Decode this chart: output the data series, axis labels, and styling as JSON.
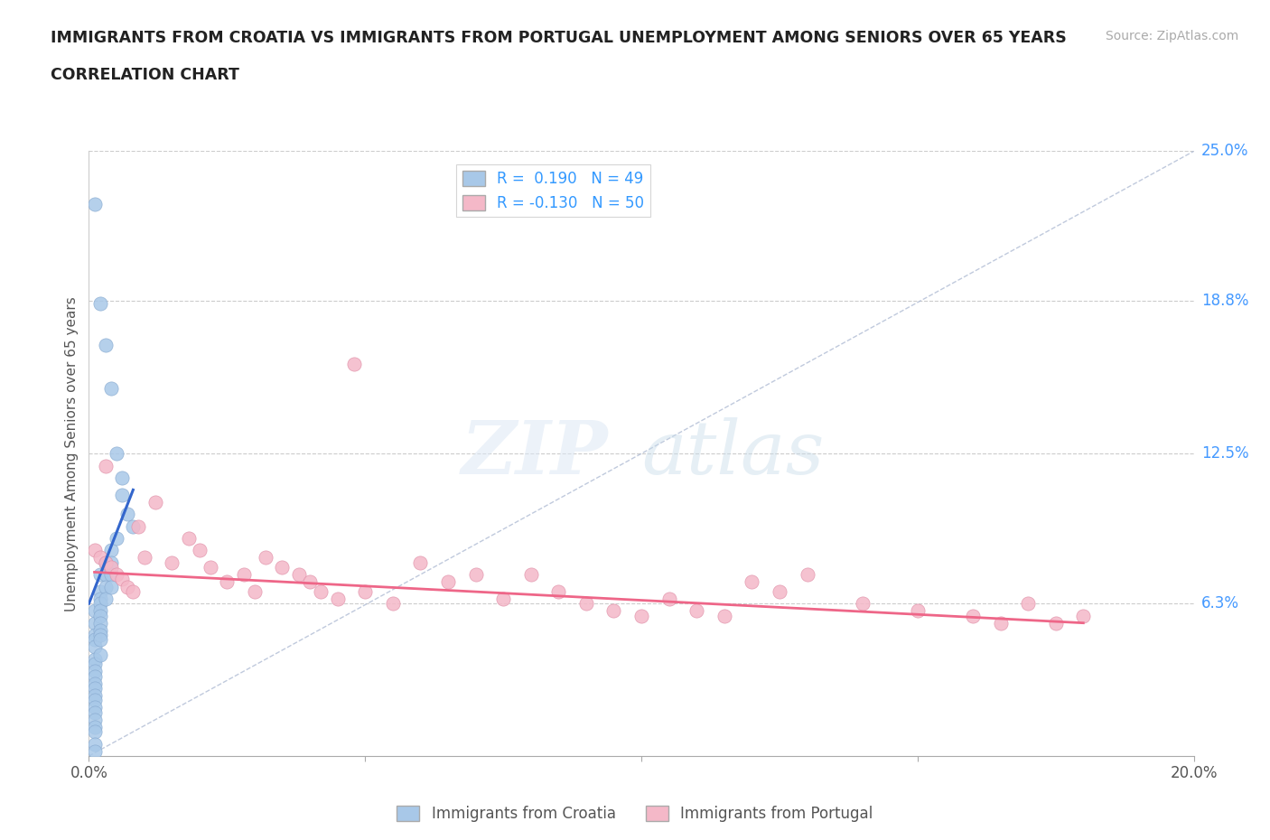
{
  "title_line1": "IMMIGRANTS FROM CROATIA VS IMMIGRANTS FROM PORTUGAL UNEMPLOYMENT AMONG SENIORS OVER 65 YEARS",
  "title_line2": "CORRELATION CHART",
  "source": "Source: ZipAtlas.com",
  "ylabel": "Unemployment Among Seniors over 65 years",
  "xlim": [
    0.0,
    0.2
  ],
  "ylim": [
    0.0,
    0.25
  ],
  "ytick_right_labels": [
    "6.3%",
    "12.5%",
    "18.8%",
    "25.0%"
  ],
  "ytick_right_values": [
    0.063,
    0.125,
    0.188,
    0.25
  ],
  "croatia_R": 0.19,
  "croatia_N": 49,
  "portugal_R": -0.13,
  "portugal_N": 50,
  "croatia_color": "#a8c8e8",
  "portugal_color": "#f4b8c8",
  "croatia_line_color": "#3366cc",
  "portugal_line_color": "#ee6688",
  "diagonal_color": "#b0bcd4",
  "watermark_zip": "ZIP",
  "watermark_atlas": "atlas",
  "croatia_x": [
    0.001,
    0.001,
    0.001,
    0.001,
    0.001,
    0.001,
    0.001,
    0.001,
    0.001,
    0.001,
    0.001,
    0.001,
    0.001,
    0.001,
    0.001,
    0.001,
    0.001,
    0.001,
    0.001,
    0.001,
    0.002,
    0.002,
    0.002,
    0.002,
    0.002,
    0.002,
    0.002,
    0.002,
    0.002,
    0.002,
    0.002,
    0.002,
    0.003,
    0.003,
    0.003,
    0.003,
    0.003,
    0.004,
    0.004,
    0.004,
    0.004,
    0.004,
    0.005,
    0.005,
    0.006,
    0.006,
    0.007,
    0.008,
    0.001
  ],
  "croatia_y": [
    0.228,
    0.06,
    0.055,
    0.05,
    0.048,
    0.045,
    0.04,
    0.038,
    0.035,
    0.033,
    0.03,
    0.028,
    0.025,
    0.023,
    0.02,
    0.018,
    0.015,
    0.012,
    0.01,
    0.005,
    0.187,
    0.075,
    0.068,
    0.065,
    0.063,
    0.06,
    0.058,
    0.055,
    0.052,
    0.05,
    0.048,
    0.042,
    0.17,
    0.08,
    0.075,
    0.07,
    0.065,
    0.152,
    0.085,
    0.08,
    0.075,
    0.07,
    0.125,
    0.09,
    0.115,
    0.108,
    0.1,
    0.095,
    0.002
  ],
  "portugal_x": [
    0.001,
    0.002,
    0.003,
    0.004,
    0.005,
    0.006,
    0.007,
    0.008,
    0.009,
    0.01,
    0.012,
    0.015,
    0.018,
    0.02,
    0.022,
    0.025,
    0.028,
    0.03,
    0.032,
    0.035,
    0.038,
    0.04,
    0.042,
    0.045,
    0.048,
    0.05,
    0.055,
    0.06,
    0.065,
    0.07,
    0.075,
    0.08,
    0.085,
    0.09,
    0.095,
    0.1,
    0.105,
    0.11,
    0.115,
    0.12,
    0.125,
    0.13,
    0.14,
    0.15,
    0.16,
    0.165,
    0.17,
    0.175,
    0.18,
    0.003
  ],
  "portugal_y": [
    0.085,
    0.082,
    0.08,
    0.078,
    0.075,
    0.073,
    0.07,
    0.068,
    0.095,
    0.082,
    0.105,
    0.08,
    0.09,
    0.085,
    0.078,
    0.072,
    0.075,
    0.068,
    0.082,
    0.078,
    0.075,
    0.072,
    0.068,
    0.065,
    0.162,
    0.068,
    0.063,
    0.08,
    0.072,
    0.075,
    0.065,
    0.075,
    0.068,
    0.063,
    0.06,
    0.058,
    0.065,
    0.06,
    0.058,
    0.072,
    0.068,
    0.075,
    0.063,
    0.06,
    0.058,
    0.055,
    0.063,
    0.055,
    0.058,
    0.12
  ],
  "croatia_trend_x": [
    0.0,
    0.008
  ],
  "croatia_trend_y": [
    0.063,
    0.11
  ],
  "portugal_trend_x": [
    0.001,
    0.18
  ],
  "portugal_trend_y": [
    0.076,
    0.055
  ]
}
